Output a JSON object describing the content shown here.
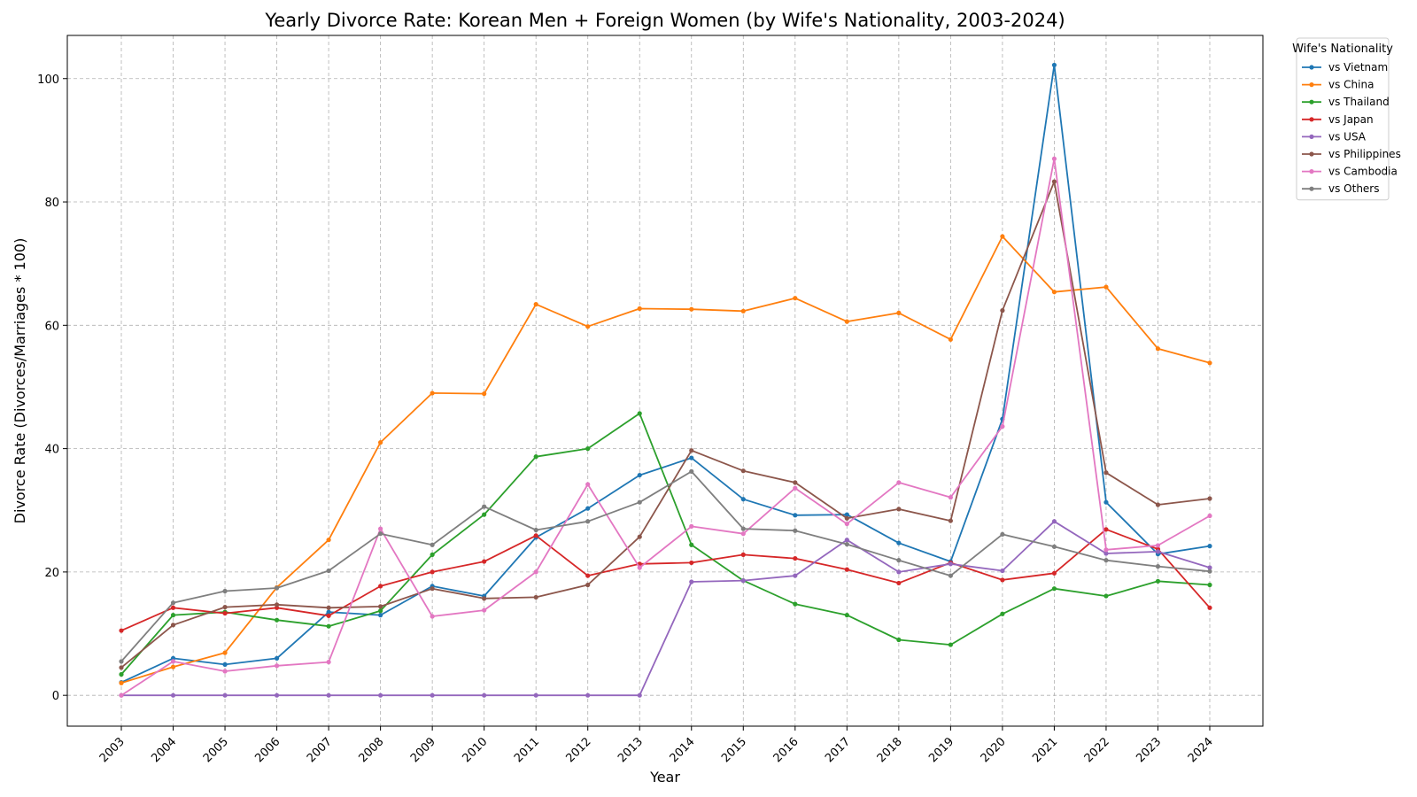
{
  "chart_data": {
    "type": "line",
    "title": "Yearly Divorce Rate: Korean Men + Foreign Women (by Wife's Nationality, 2003-2024)",
    "xlabel": "Year",
    "ylabel": "Divorce Rate (Divorces/Marriages * 100)",
    "ylim": [
      -5,
      107
    ],
    "yticks": [
      0,
      20,
      40,
      60,
      80,
      100
    ],
    "grid": true,
    "legend_title": "Wife's Nationality",
    "legend_position": "outside top-right",
    "x": [
      "2003",
      "2004",
      "2005",
      "2006",
      "2007",
      "2008",
      "2009",
      "2010",
      "2011",
      "2012",
      "2013",
      "2014",
      "2015",
      "2016",
      "2017",
      "2018",
      "2019",
      "2020",
      "2021",
      "2022",
      "2023",
      "2024"
    ],
    "series": [
      {
        "name": "vs Vietnam",
        "color": "#1f77b4",
        "values": [
          2.1,
          6.0,
          5.0,
          6.0,
          13.5,
          13.0,
          17.7,
          16.1,
          25.6,
          30.3,
          35.7,
          38.5,
          31.8,
          29.2,
          29.3,
          24.7,
          21.7,
          44.8,
          102.2,
          31.3,
          22.9,
          24.2
        ]
      },
      {
        "name": "vs China",
        "color": "#ff7f0e",
        "values": [
          2.0,
          4.6,
          6.9,
          17.5,
          25.2,
          41.0,
          49.0,
          48.9,
          63.4,
          59.8,
          62.7,
          62.6,
          62.3,
          64.4,
          60.6,
          62.0,
          57.7,
          74.4,
          65.4,
          66.2,
          56.2,
          53.9
        ]
      },
      {
        "name": "vs Thailand",
        "color": "#2ca02c",
        "values": [
          3.4,
          13.0,
          13.5,
          12.2,
          11.2,
          13.7,
          22.8,
          29.3,
          38.7,
          40.0,
          45.7,
          24.4,
          18.6,
          14.8,
          13.0,
          9.0,
          8.2,
          13.2,
          17.3,
          16.1,
          18.5,
          17.9
        ]
      },
      {
        "name": "vs Japan",
        "color": "#d62728",
        "values": [
          10.5,
          14.2,
          13.3,
          14.2,
          12.9,
          17.7,
          20.0,
          21.7,
          25.9,
          19.4,
          21.3,
          21.5,
          22.8,
          22.2,
          20.4,
          18.2,
          21.5,
          18.7,
          19.8,
          26.9,
          23.7,
          14.2
        ]
      },
      {
        "name": "vs USA",
        "color": "#9467bd",
        "values": [
          0,
          0,
          0,
          0,
          0,
          0,
          0,
          0,
          0,
          0,
          0,
          18.4,
          18.6,
          19.4,
          25.2,
          20.0,
          21.3,
          20.2,
          28.2,
          23.0,
          23.3,
          20.7
        ]
      },
      {
        "name": "vs Philippines",
        "color": "#8c564b",
        "values": [
          4.5,
          11.4,
          14.3,
          14.7,
          14.2,
          14.4,
          17.3,
          15.7,
          15.9,
          17.9,
          25.7,
          39.7,
          36.4,
          34.5,
          28.7,
          30.2,
          28.3,
          62.4,
          83.3,
          36.1,
          30.9,
          31.9
        ]
      },
      {
        "name": "vs Cambodia",
        "color": "#e377c2",
        "values": [
          0,
          5.5,
          3.9,
          4.8,
          5.4,
          27.0,
          12.8,
          13.8,
          20.0,
          34.2,
          20.7,
          27.4,
          26.2,
          33.6,
          27.8,
          34.5,
          32.1,
          43.6,
          87.0,
          23.6,
          24.3,
          29.1
        ]
      },
      {
        "name": "vs Others",
        "color": "#7f7f7f",
        "values": [
          5.5,
          15.0,
          16.9,
          17.4,
          20.2,
          26.2,
          24.4,
          30.6,
          26.8,
          28.2,
          31.3,
          36.3,
          27.0,
          26.7,
          24.5,
          21.9,
          19.4,
          26.1,
          24.1,
          21.9,
          20.9,
          20.1
        ]
      }
    ]
  }
}
